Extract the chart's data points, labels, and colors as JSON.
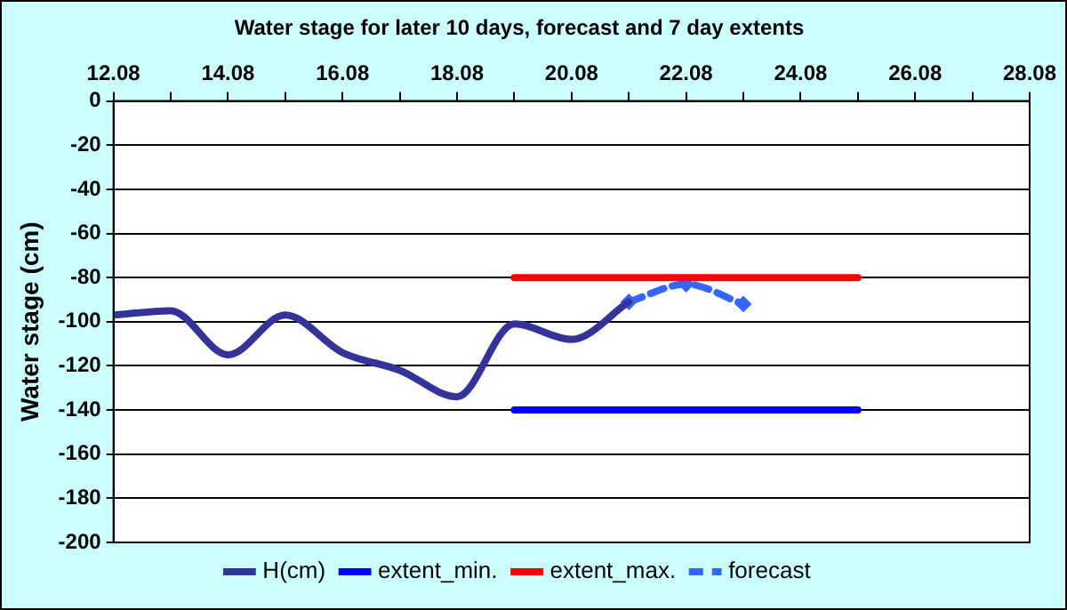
{
  "chart_data": {
    "type": "line",
    "title": "Water stage for later 10 days, forecast and 7 day extents",
    "ylabel": "Water stage (cm)",
    "series": [
      {
        "name": "H(cm)",
        "color": "#333399",
        "x": [
          "--08-12",
          "--08-13",
          "--08-14",
          "--08-15",
          "--08-16",
          "--08-17",
          "--08-18",
          "--08-19",
          "--08-20",
          "--08-21"
        ],
        "values": [
          -97,
          -95,
          -115,
          -97,
          -114,
          -122,
          -134,
          -101,
          -108,
          -91
        ],
        "marker": "none",
        "line_style": "solid"
      },
      {
        "name": "extent_min.",
        "color": "#0000ff",
        "x": [
          "--08-19",
          "--08-25"
        ],
        "values": [
          -140,
          -140
        ],
        "marker": "none",
        "line_style": "solid"
      },
      {
        "name": "extent_max.",
        "color": "#ff0000",
        "x": [
          "--08-19",
          "--08-25"
        ],
        "values": [
          -80,
          -80
        ],
        "marker": "none",
        "line_style": "solid"
      },
      {
        "name": "forecast",
        "color": "#3366ff",
        "x": [
          "--08-21",
          "--08-22",
          "--08-23"
        ],
        "values": [
          -91,
          -83,
          -92
        ],
        "marker": "diamond",
        "line_style": "dashed"
      }
    ],
    "xlim": [
      "--08-12",
      "--08-28"
    ],
    "xticks": [
      {
        "value": "--08-12",
        "label": "12.08"
      },
      {
        "value": "--08-13",
        "label": null
      },
      {
        "value": "--08-14",
        "label": "14.08"
      },
      {
        "value": "--08-15",
        "label": null
      },
      {
        "value": "--08-16",
        "label": "16.08"
      },
      {
        "value": "--08-17",
        "label": null
      },
      {
        "value": "--08-18",
        "label": "18.08"
      },
      {
        "value": "--08-19",
        "label": null
      },
      {
        "value": "--08-20",
        "label": "20.08"
      },
      {
        "value": "--08-21",
        "label": null
      },
      {
        "value": "--08-22",
        "label": "22.08"
      },
      {
        "value": "--08-23",
        "label": null
      },
      {
        "value": "--08-24",
        "label": "24.08"
      },
      {
        "value": "--08-25",
        "label": null
      },
      {
        "value": "--08-26",
        "label": "26.08"
      },
      {
        "value": "--08-27",
        "label": null
      },
      {
        "value": "--08-28",
        "label": "28.08"
      }
    ],
    "ylim": [
      -200,
      0
    ],
    "yticks": [
      -200,
      -180,
      -160,
      -140,
      -120,
      -100,
      -80,
      -60,
      -40,
      -20,
      0
    ],
    "grid": "y",
    "legend": "bottom"
  }
}
